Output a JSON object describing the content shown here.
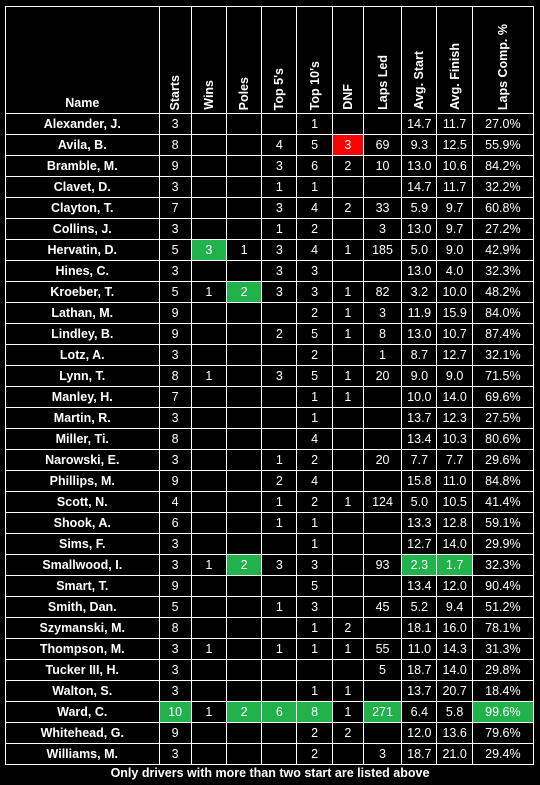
{
  "columns": [
    "Name",
    "Starts",
    "Wins",
    "Poles",
    "Top 5's",
    "Top 10's",
    "DNF",
    "Laps Led",
    "Avg. Start",
    "Avg. Finish",
    "Laps Comp. %"
  ],
  "rows": [
    [
      "Alexander, J.",
      "3",
      "",
      "",
      "",
      "1",
      "",
      "",
      "14.7",
      "11.7",
      "27.0%"
    ],
    [
      "Avila, B.",
      "8",
      "",
      "",
      "4",
      "5",
      "3",
      "69",
      "9.3",
      "12.5",
      "55.9%"
    ],
    [
      "Bramble, M.",
      "9",
      "",
      "",
      "3",
      "6",
      "2",
      "10",
      "13.0",
      "10.6",
      "84.2%"
    ],
    [
      "Clavet, D.",
      "3",
      "",
      "",
      "1",
      "1",
      "",
      "",
      "14.7",
      "11.7",
      "32.2%"
    ],
    [
      "Clayton, T.",
      "7",
      "",
      "",
      "3",
      "4",
      "2",
      "33",
      "5.9",
      "9.7",
      "60.8%"
    ],
    [
      "Collins, J.",
      "3",
      "",
      "",
      "1",
      "2",
      "",
      "3",
      "13.0",
      "9.7",
      "27.2%"
    ],
    [
      "Hervatin, D.",
      "5",
      "3",
      "1",
      "3",
      "4",
      "1",
      "185",
      "5.0",
      "9.0",
      "42.9%"
    ],
    [
      "Hines, C.",
      "3",
      "",
      "",
      "3",
      "3",
      "",
      "",
      "13.0",
      "4.0",
      "32.3%"
    ],
    [
      "Kroeber, T.",
      "5",
      "1",
      "2",
      "3",
      "3",
      "1",
      "82",
      "3.2",
      "10.0",
      "48.2%"
    ],
    [
      "Lathan, M.",
      "9",
      "",
      "",
      "",
      "2",
      "1",
      "3",
      "11.9",
      "15.9",
      "84.0%"
    ],
    [
      "Lindley, B.",
      "9",
      "",
      "",
      "2",
      "5",
      "1",
      "8",
      "13.0",
      "10.7",
      "87.4%"
    ],
    [
      "Lotz, A.",
      "3",
      "",
      "",
      "",
      "2",
      "",
      "1",
      "8.7",
      "12.7",
      "32.1%"
    ],
    [
      "Lynn, T.",
      "8",
      "1",
      "",
      "3",
      "5",
      "1",
      "20",
      "9.0",
      "9.0",
      "71.5%"
    ],
    [
      "Manley, H.",
      "7",
      "",
      "",
      "",
      "1",
      "1",
      "",
      "10.0",
      "14.0",
      "69.6%"
    ],
    [
      "Martin, R.",
      "3",
      "",
      "",
      "",
      "1",
      "",
      "",
      "13.7",
      "12.3",
      "27.5%"
    ],
    [
      "Miller, Ti.",
      "8",
      "",
      "",
      "",
      "4",
      "",
      "",
      "13.4",
      "10.3",
      "80.6%"
    ],
    [
      "Narowski, E.",
      "3",
      "",
      "",
      "1",
      "2",
      "",
      "20",
      "7.7",
      "7.7",
      "29.6%"
    ],
    [
      "Phillips, M.",
      "9",
      "",
      "",
      "2",
      "4",
      "",
      "",
      "15.8",
      "11.0",
      "84.8%"
    ],
    [
      "Scott, N.",
      "4",
      "",
      "",
      "1",
      "2",
      "1",
      "124",
      "5.0",
      "10.5",
      "41.4%"
    ],
    [
      "Shook, A.",
      "6",
      "",
      "",
      "1",
      "1",
      "",
      "",
      "13.3",
      "12.8",
      "59.1%"
    ],
    [
      "Sims, F.",
      "3",
      "",
      "",
      "",
      "1",
      "",
      "",
      "12.7",
      "14.0",
      "29.9%"
    ],
    [
      "Smallwood, I.",
      "3",
      "1",
      "2",
      "3",
      "3",
      "",
      "93",
      "2.3",
      "1.7",
      "32.3%"
    ],
    [
      "Smart, T.",
      "9",
      "",
      "",
      "",
      "5",
      "",
      "",
      "13.4",
      "12.0",
      "90.4%"
    ],
    [
      "Smith, Dan.",
      "5",
      "",
      "",
      "1",
      "3",
      "",
      "45",
      "5.2",
      "9.4",
      "51.2%"
    ],
    [
      "Szymanski, M.",
      "8",
      "",
      "",
      "",
      "1",
      "2",
      "",
      "18.1",
      "16.0",
      "78.1%"
    ],
    [
      "Thompson, M.",
      "3",
      "1",
      "",
      "1",
      "1",
      "1",
      "55",
      "11.0",
      "14.3",
      "31.3%"
    ],
    [
      "Tucker III, H.",
      "3",
      "",
      "",
      "",
      "",
      "",
      "5",
      "18.7",
      "14.0",
      "29.8%"
    ],
    [
      "Walton, S.",
      "3",
      "",
      "",
      "",
      "1",
      "1",
      "",
      "13.7",
      "20.7",
      "18.4%"
    ],
    [
      "Ward, C.",
      "10",
      "1",
      "2",
      "6",
      "8",
      "1",
      "271",
      "6.4",
      "5.8",
      "99.6%"
    ],
    [
      "Whitehead, G.",
      "9",
      "",
      "",
      "",
      "2",
      "2",
      "",
      "12.0",
      "13.6",
      "79.6%"
    ],
    [
      "Williams, M.",
      "3",
      "",
      "",
      "",
      "2",
      "",
      "3",
      "18.7",
      "21.0",
      "29.4%"
    ]
  ],
  "highlights": [
    {
      "row": 1,
      "col": 6,
      "color": "#ff0000"
    },
    {
      "row": 6,
      "col": 2,
      "color": "#21b24b"
    },
    {
      "row": 8,
      "col": 3,
      "color": "#21b24b"
    },
    {
      "row": 21,
      "col": 3,
      "color": "#21b24b"
    },
    {
      "row": 21,
      "col": 8,
      "color": "#21b24b"
    },
    {
      "row": 21,
      "col": 9,
      "color": "#21b24b"
    },
    {
      "row": 28,
      "col": 1,
      "color": "#21b24b"
    },
    {
      "row": 28,
      "col": 3,
      "color": "#21b24b"
    },
    {
      "row": 28,
      "col": 4,
      "color": "#21b24b"
    },
    {
      "row": 28,
      "col": 5,
      "color": "#21b24b"
    },
    {
      "row": 28,
      "col": 7,
      "color": "#21b24b"
    },
    {
      "row": 28,
      "col": 10,
      "color": "#21b24b"
    }
  ],
  "footnote": "Only drivers with more than two start are listed above"
}
